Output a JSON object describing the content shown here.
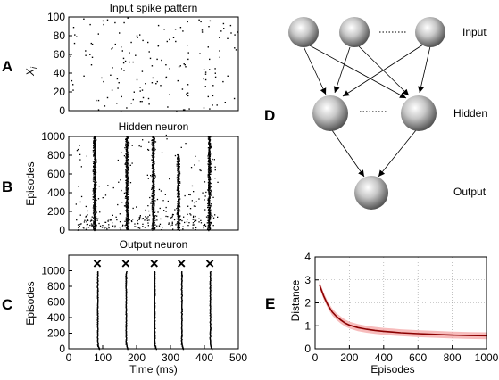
{
  "panels": {
    "A": {
      "letter": "A",
      "title": "Input spike pattern",
      "ylabel_main": "X",
      "ylabel_sub": "i",
      "yticks": [
        "0",
        "20",
        "40",
        "60",
        "80",
        "100"
      ],
      "ylim": [
        0,
        100
      ],
      "xlim": [
        0,
        500
      ]
    },
    "B": {
      "letter": "B",
      "title": "Hidden neuron",
      "ylabel": "Episodes",
      "yticks": [
        "0",
        "200",
        "400",
        "600",
        "800",
        "1000"
      ],
      "ylim": [
        0,
        1000
      ],
      "xlim": [
        0,
        500
      ]
    },
    "C": {
      "letter": "C",
      "title": "Output neuron",
      "ylabel": "Episodes",
      "xlabel": "Time (ms)",
      "yticks": [
        "0",
        "200",
        "400",
        "600",
        "800",
        "1000"
      ],
      "xticks": [
        "0",
        "100",
        "200",
        "300",
        "400",
        "500"
      ],
      "ylim": [
        0,
        1200
      ],
      "xlim": [
        0,
        500
      ],
      "target_marker": "×"
    },
    "D": {
      "letter": "D",
      "layer_input": "Input",
      "layer_hidden": "Hidden",
      "layer_output": "Output"
    },
    "E": {
      "letter": "E",
      "ylabel": "Distance",
      "xlabel": "Episodes",
      "yticks": [
        "0",
        "1",
        "2",
        "3",
        "4"
      ],
      "xticks": [
        "0",
        "200",
        "400",
        "600",
        "800",
        "1000"
      ]
    }
  },
  "chart_data": [
    {
      "type": "scatter",
      "panel": "A",
      "title": "Input spike pattern",
      "xlabel": "",
      "ylabel": "X_i",
      "xlim": [
        0,
        500
      ],
      "ylim": [
        0,
        100
      ],
      "grid": false,
      "description_values": "sparse random raster, approx. 1-3 spikes per input neuron over 500 ms"
    },
    {
      "type": "scatter",
      "panel": "B",
      "title": "Hidden neuron",
      "ylabel": "Episodes",
      "xlim": [
        0,
        500
      ],
      "ylim": [
        0,
        1000
      ],
      "grid": false,
      "band_centers_ms": [
        75,
        170,
        248,
        322,
        413
      ],
      "band_extent_episodes": [
        1000,
        1000,
        1000,
        800,
        1000
      ]
    },
    {
      "type": "scatter",
      "panel": "C",
      "title": "Output neuron",
      "xlabel": "Time (ms)",
      "ylabel": "Episodes",
      "xlim": [
        0,
        500
      ],
      "ylim": [
        0,
        1200
      ],
      "grid": false,
      "target_times_ms": [
        84,
        168,
        252,
        332,
        416
      ],
      "target_marker_y": 1100
    },
    {
      "type": "line",
      "panel": "E",
      "xlabel": "Episodes",
      "ylabel": "Distance",
      "xlim": [
        0,
        1000
      ],
      "ylim": [
        0,
        4
      ],
      "grid": true,
      "x": [
        25,
        50,
        75,
        100,
        125,
        150,
        175,
        200,
        250,
        300,
        350,
        400,
        450,
        500,
        600,
        700,
        800,
        900,
        1000
      ],
      "y": [
        2.8,
        2.3,
        1.9,
        1.6,
        1.4,
        1.25,
        1.12,
        1.03,
        0.92,
        0.85,
        0.8,
        0.76,
        0.73,
        0.7,
        0.66,
        0.63,
        0.6,
        0.58,
        0.57
      ],
      "band_halfwidth": 0.15,
      "line_color": "#8b0000",
      "band_color": "#f4a6a6"
    }
  ]
}
